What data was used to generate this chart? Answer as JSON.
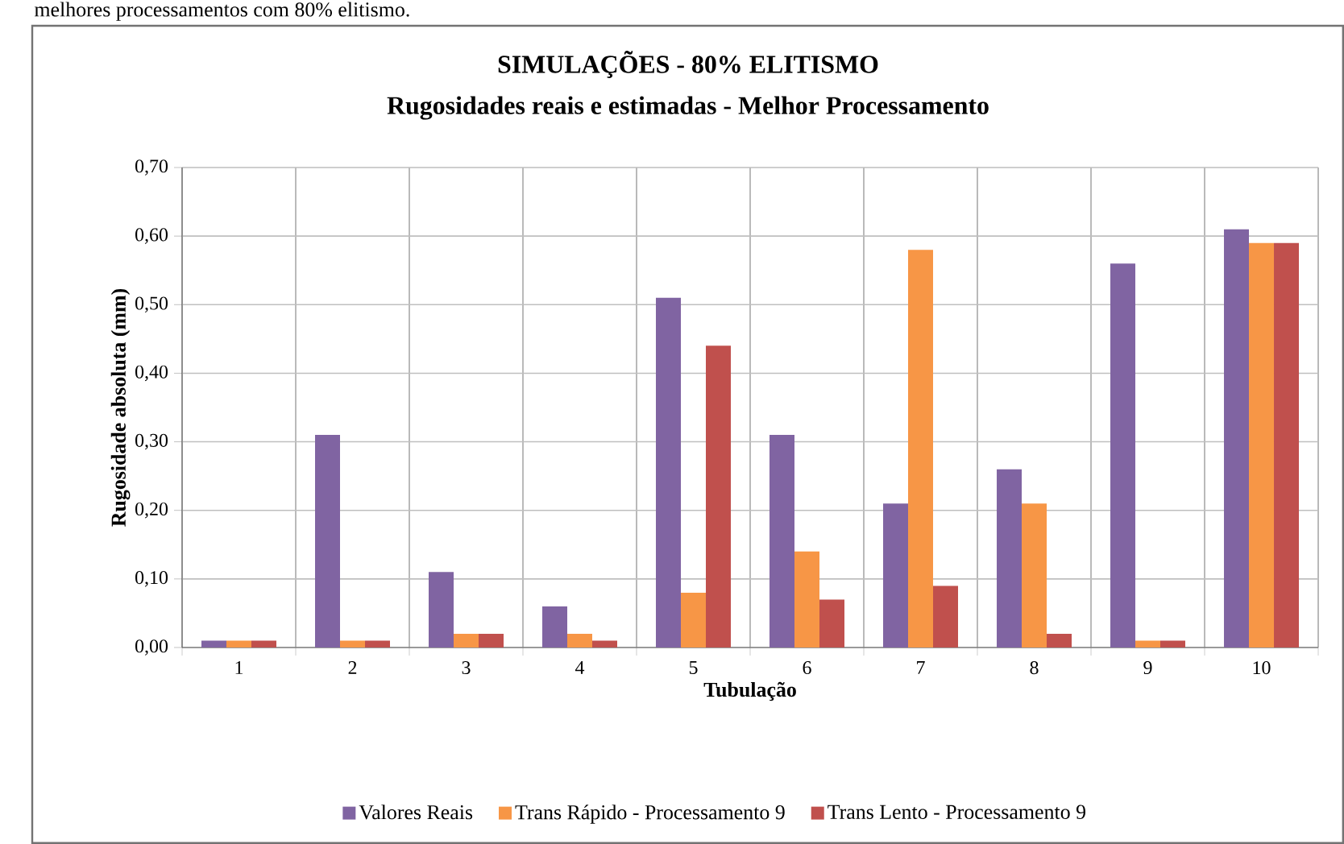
{
  "chart_data": {
    "type": "bar",
    "title": "SIMULAÇÕES - 80% ELITISMO",
    "subtitle": "Rugosidades reais e estimadas - Melhor Processamento",
    "xlabel": "Tubulação",
    "ylabel": "Rugosidade absoluta (mm)",
    "annotations": [
      "melhores processamentos com 80% elitismo."
    ],
    "categories": [
      "1",
      "2",
      "3",
      "4",
      "5",
      "6",
      "7",
      "8",
      "9",
      "10"
    ],
    "series": [
      {
        "name": "Valores Reais",
        "color": "#8064a2",
        "values": [
          0.01,
          0.31,
          0.11,
          0.06,
          0.51,
          0.31,
          0.21,
          0.26,
          0.56,
          0.61
        ]
      },
      {
        "name": "Trans Rápido - Processamento 9",
        "color": "#f79646",
        "values": [
          0.01,
          0.01,
          0.02,
          0.02,
          0.08,
          0.14,
          0.58,
          0.21,
          0.01,
          0.59
        ]
      },
      {
        "name": "Trans Lento - Processamento 9",
        "color": "#c0504d",
        "values": [
          0.01,
          0.01,
          0.02,
          0.01,
          0.44,
          0.07,
          0.09,
          0.02,
          0.01,
          0.59
        ]
      }
    ],
    "ylim": [
      0,
      0.7
    ],
    "yticks": [
      {
        "value": 0,
        "label": "0,00"
      },
      {
        "value": 0.1,
        "label": "0,10"
      },
      {
        "value": 0.2,
        "label": "0,20"
      },
      {
        "value": 0.3,
        "label": "0,30"
      },
      {
        "value": 0.4,
        "label": "0,40"
      },
      {
        "value": 0.5,
        "label": "0,50"
      },
      {
        "value": 0.6,
        "label": "0,60"
      },
      {
        "value": 0.7,
        "label": "0,70"
      }
    ],
    "grid": true,
    "legend": "bottom"
  }
}
